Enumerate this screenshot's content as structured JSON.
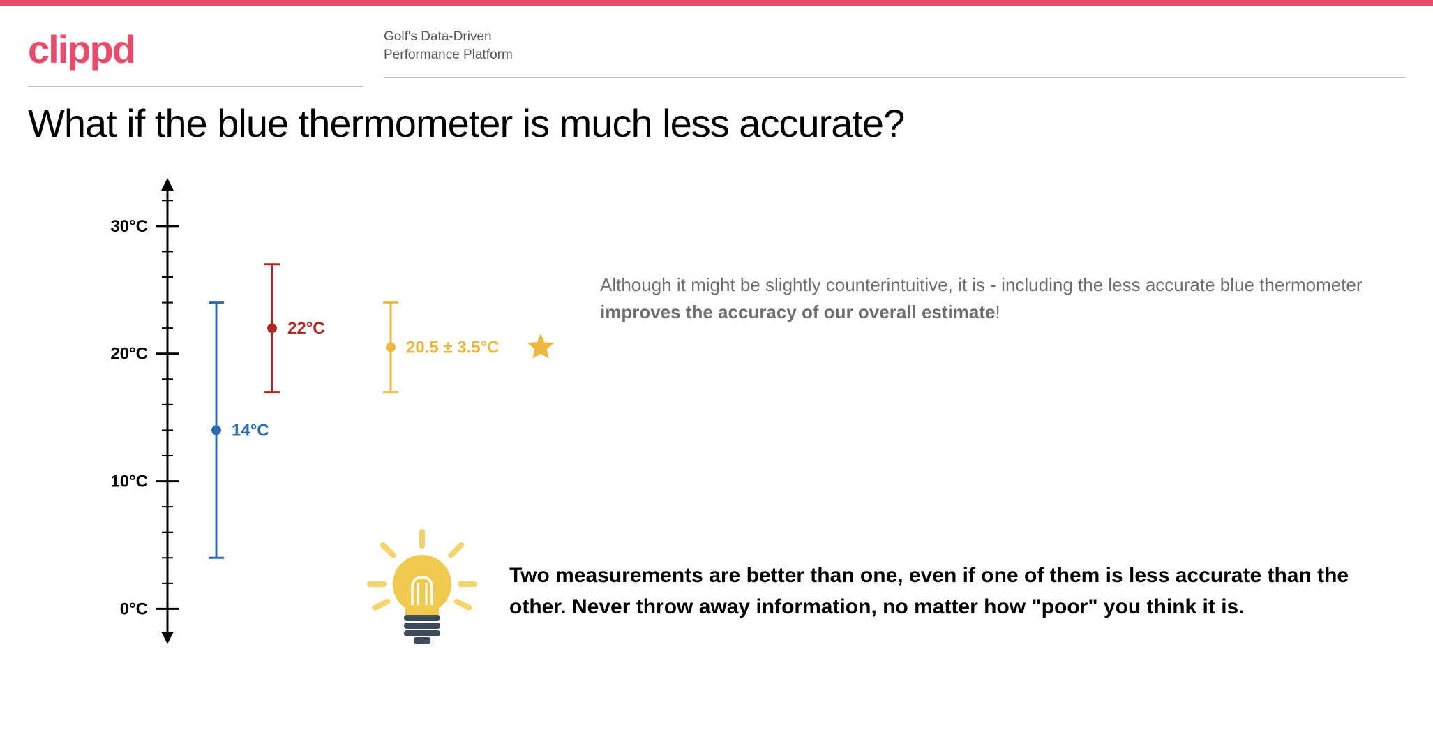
{
  "brand": {
    "logo_text": "clippd",
    "logo_color": "#e94b6a",
    "tagline_line1": "Golf's Data-Driven",
    "tagline_line2": "Performance Platform"
  },
  "topbar_color": "#e94b6a",
  "title": "What if the blue thermometer is much less accurate?",
  "chart": {
    "type": "errorbar",
    "axis_color": "#000000",
    "background_color": "#ffffff",
    "y_min": -2,
    "y_max": 33,
    "y_ticks_major": [
      {
        "value": 0,
        "label": "0°C"
      },
      {
        "value": 10,
        "label": "10°C"
      },
      {
        "value": 20,
        "label": "20°C"
      },
      {
        "value": 30,
        "label": "30°C"
      }
    ],
    "y_tick_step_minor": 2,
    "tick_label_fontsize": 24,
    "tick_label_weight": 700,
    "series": [
      {
        "name": "blue",
        "center": 14,
        "low": 4,
        "high": 24,
        "color": "#2b6cb0",
        "label": "14°C",
        "x_offset": 70,
        "line_width": 3,
        "cap_width": 22,
        "dot_r": 7
      },
      {
        "name": "red",
        "center": 22,
        "low": 17,
        "high": 27,
        "color": "#b32626",
        "label": "22°C",
        "x_offset": 150,
        "line_width": 3,
        "cap_width": 22,
        "dot_r": 7
      },
      {
        "name": "yellow",
        "center": 20.5,
        "low": 17,
        "high": 24,
        "color": "#efb73e",
        "label": "20.5 ± 3.5°C",
        "x_offset": 320,
        "line_width": 3,
        "cap_width": 22,
        "dot_r": 7
      }
    ],
    "star_color": "#efb73e",
    "label_fontsize": 24
  },
  "explanation": {
    "pre": "Although it might be slightly counterintuitive, it is - including the less accurate blue thermometer ",
    "strong": "improves the accuracy of our overall estimate",
    "post": "!"
  },
  "insight": "Two measurements are better than one, even if one of them is less accurate than the other. Never throw away information, no matter how \"poor\" you think it is.",
  "bulb": {
    "glow_color": "#f7d46b",
    "bulb_color": "#f0c94f",
    "base_color": "#3d4a5c",
    "filament_color": "#ffffff"
  }
}
